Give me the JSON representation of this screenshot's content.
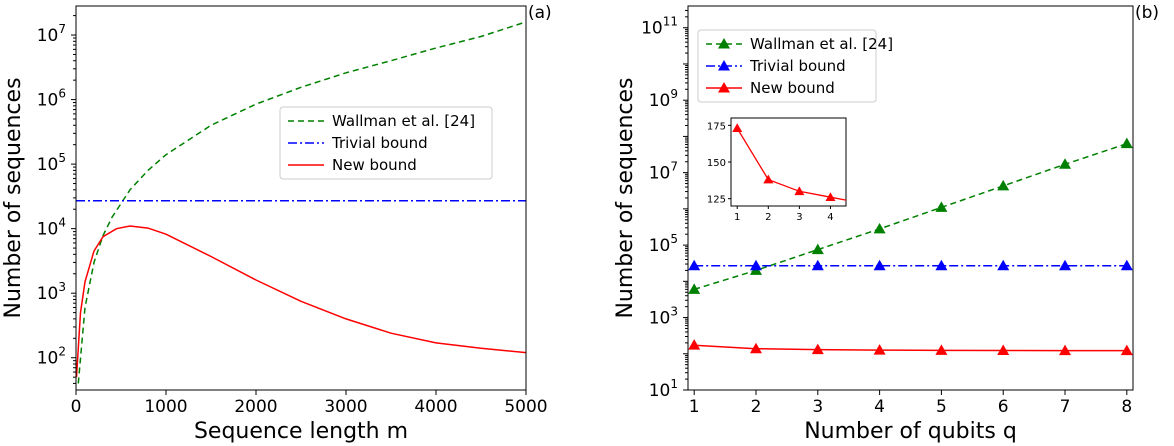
{
  "chart_data": [
    {
      "type": "line",
      "panel_label": "(a)",
      "xlabel": "Sequence length m",
      "ylabel": "Number of sequences",
      "xlim": [
        0,
        5000
      ],
      "yscale": "log",
      "ylim_log10": [
        1.5,
        7.45
      ],
      "xticks": [
        0,
        1000,
        2000,
        3000,
        4000,
        5000
      ],
      "xtick_labels": [
        "0",
        "1000",
        "2000",
        "3000",
        "4000",
        "5000"
      ],
      "ytick_exponents": [
        2,
        3,
        4,
        5,
        6,
        7
      ],
      "ytick_base": "10",
      "grid": false,
      "legend_position": "center-right",
      "series": [
        {
          "name": "Wallman et al. [24]",
          "style": "dashed",
          "color": "#008000",
          "points": [
            [
              25,
              40
            ],
            [
              100,
              600
            ],
            [
              200,
              3000
            ],
            [
              300,
              7800
            ],
            [
              400,
              15000
            ],
            [
              600,
              40000
            ],
            [
              800,
              80000
            ],
            [
              1000,
              140000
            ],
            [
              1500,
              400000
            ],
            [
              2000,
              850000
            ],
            [
              2500,
              1550000
            ],
            [
              3000,
              2600000
            ],
            [
              3500,
              4000000
            ],
            [
              4000,
              6300000
            ],
            [
              4500,
              9500000
            ],
            [
              5000,
              16000000
            ]
          ]
        },
        {
          "name": "Trivial bound",
          "style": "dashdot",
          "color": "#0000ff",
          "points": [
            [
              0,
              27000
            ],
            [
              5000,
              27000
            ]
          ]
        },
        {
          "name": "New bound",
          "style": "solid",
          "color": "#ff0000",
          "points": [
            [
              5,
              50
            ],
            [
              50,
              500
            ],
            [
              100,
              1500
            ],
            [
              200,
              4500
            ],
            [
              300,
              7500
            ],
            [
              450,
              10000
            ],
            [
              600,
              11000
            ],
            [
              800,
              10200
            ],
            [
              1000,
              8200
            ],
            [
              1500,
              3700
            ],
            [
              2000,
              1600
            ],
            [
              2500,
              750
            ],
            [
              3000,
              400
            ],
            [
              3500,
              240
            ],
            [
              4000,
              170
            ],
            [
              4500,
              140
            ],
            [
              5000,
              120
            ]
          ]
        }
      ]
    },
    {
      "type": "line",
      "panel_label": "(b)",
      "xlabel": "Number of qubits q",
      "ylabel": "Number of sequences",
      "xlim": [
        0.9,
        8.1
      ],
      "yscale": "log",
      "ylim_log10": [
        1,
        11.6
      ],
      "xticks": [
        1,
        2,
        3,
        4,
        5,
        6,
        7,
        8
      ],
      "xtick_labels": [
        "1",
        "2",
        "3",
        "4",
        "5",
        "6",
        "7",
        "8"
      ],
      "ytick_exponents": [
        1,
        3,
        5,
        7,
        9,
        11
      ],
      "ytick_base": "10",
      "grid": false,
      "legend_position": "top-left",
      "marker": "triangle",
      "series": [
        {
          "name": "Wallman et al. [24]",
          "style": "dashed",
          "color": "#008000",
          "x": [
            1,
            2,
            3,
            4,
            5,
            6,
            7,
            8
          ],
          "y": [
            6000,
            20000,
            75000,
            280000,
            1100000,
            4300000,
            17000000,
            63000000
          ]
        },
        {
          "name": "Trivial bound",
          "style": "dashdot",
          "color": "#0000ff",
          "x": [
            1,
            2,
            3,
            4,
            5,
            6,
            7,
            8
          ],
          "y": [
            27000,
            27000,
            27000,
            27000,
            27000,
            27000,
            27000,
            27000
          ]
        },
        {
          "name": "New bound",
          "style": "solid",
          "color": "#ff0000",
          "x": [
            1,
            2,
            3,
            4,
            5,
            6,
            7,
            8
          ],
          "y": [
            173,
            138,
            130,
            126,
            124,
            123,
            122,
            122
          ]
        }
      ],
      "inset": {
        "type": "line",
        "xlim": [
          0.8,
          4.5
        ],
        "ylim": [
          120,
          180
        ],
        "xticks": [
          1,
          2,
          3,
          4
        ],
        "xtick_labels": [
          "1",
          "2",
          "3",
          "4"
        ],
        "yticks": [
          125,
          150,
          175
        ],
        "ytick_labels": [
          "125",
          "150",
          "175"
        ],
        "series": [
          {
            "color": "#ff0000",
            "x": [
              1,
              2,
              3,
              4,
              4.5
            ],
            "y": [
              173,
              138,
              130,
              126,
              124
            ]
          }
        ]
      }
    }
  ]
}
